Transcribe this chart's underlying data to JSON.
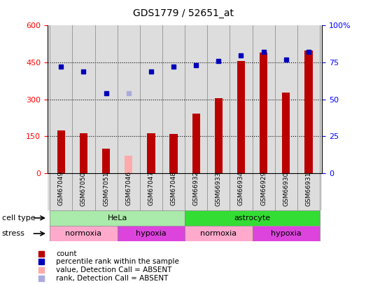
{
  "title": "GDS1779 / 52651_at",
  "samples": [
    "GSM67049",
    "GSM67050",
    "GSM67051",
    "GSM67046",
    "GSM67047",
    "GSM67048",
    "GSM66932",
    "GSM66933",
    "GSM66934",
    "GSM66929",
    "GSM66930",
    "GSM66931"
  ],
  "count_values": [
    175,
    162,
    100,
    null,
    162,
    160,
    242,
    305,
    455,
    490,
    328,
    500
  ],
  "count_absent": [
    null,
    null,
    null,
    72,
    null,
    null,
    null,
    null,
    null,
    null,
    null,
    null
  ],
  "percentile_values": [
    72,
    69,
    54,
    54,
    69,
    72,
    73,
    76,
    80,
    82,
    77,
    82
  ],
  "percentile_absent": [
    false,
    false,
    false,
    true,
    false,
    false,
    false,
    false,
    false,
    false,
    false,
    false
  ],
  "left_ylim": [
    0,
    600
  ],
  "left_yticks": [
    0,
    150,
    300,
    450,
    600
  ],
  "right_ylim": [
    0,
    100
  ],
  "right_yticks": [
    0,
    25,
    50,
    75,
    100
  ],
  "cell_type_groups": [
    {
      "label": "HeLa",
      "start": 0,
      "end": 6,
      "color": "#aaeaaa"
    },
    {
      "label": "astrocyte",
      "start": 6,
      "end": 12,
      "color": "#33dd33"
    }
  ],
  "stress_groups": [
    {
      "label": "normoxia",
      "start": 0,
      "end": 3,
      "color": "#ffaacc"
    },
    {
      "label": "hypoxia",
      "start": 3,
      "end": 6,
      "color": "#dd44dd"
    },
    {
      "label": "normoxia",
      "start": 6,
      "end": 9,
      "color": "#ffaacc"
    },
    {
      "label": "hypoxia",
      "start": 9,
      "end": 12,
      "color": "#dd44dd"
    }
  ],
  "bar_color_present": "#bb0000",
  "bar_color_absent": "#ffaaaa",
  "dot_color_present": "#0000bb",
  "dot_color_absent": "#aaaadd",
  "plot_bg": "#dddddd",
  "bar_width": 0.35
}
